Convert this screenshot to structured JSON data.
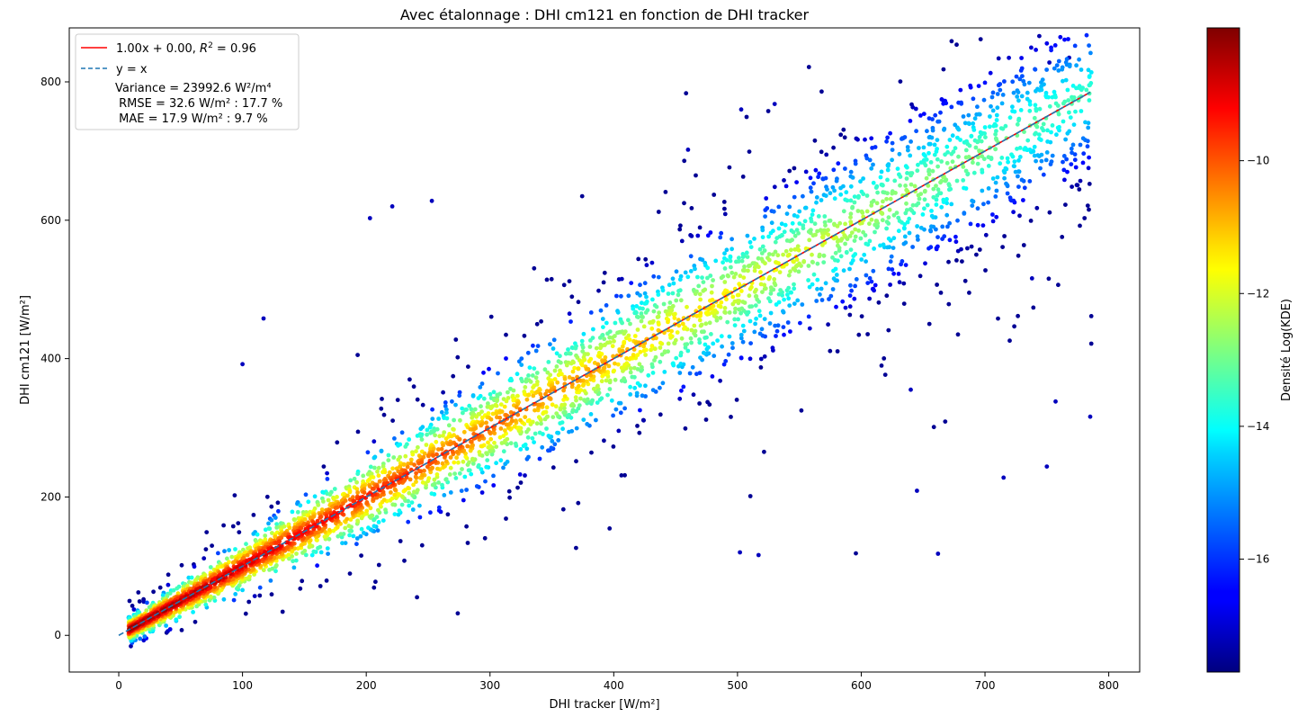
{
  "chart_data": {
    "type": "scatter",
    "title": "Avec étalonnage : DHI cm121 en fonction de DHI tracker",
    "xlabel": "DHI tracker [W/m²]",
    "ylabel": "DHI cm121 [W/m²]",
    "xlim": [
      -40,
      825
    ],
    "ylim": [
      -53,
      878
    ],
    "xticks": [
      0,
      100,
      200,
      300,
      400,
      500,
      600,
      700,
      800
    ],
    "yticks": [
      0,
      200,
      400,
      600,
      800
    ],
    "grid": false,
    "legend_position": "top-left",
    "legend": {
      "fit_label_text": "1.00x + 0.00, ",
      "fit_label_r2": "0.96",
      "identity_label": "y = x",
      "stats_lines": [
        "Variance = 23992.6 W²/m⁴",
        " RMSE = 32.6 W/m² : 17.7 %",
        " MAE = 17.9 W/m² : 9.7 %"
      ]
    },
    "series": [
      {
        "kind": "fit_line",
        "slope": 1.0,
        "intercept": 0.0,
        "r2": 0.96,
        "x_range": [
          10,
          785
        ],
        "color": "#ff0000"
      },
      {
        "kind": "identity_line",
        "x_range": [
          0,
          785
        ],
        "color": "#1f77b4",
        "dash": "dashed"
      }
    ],
    "scatter": {
      "x_range": [
        8,
        786
      ],
      "y_range": [
        -10,
        835
      ],
      "colormap": "jet",
      "color_variable": "Densité Log(KDE)",
      "note_points": "dense cloud of points around y = x, colored by log kernel density",
      "sample_outliers": [
        {
          "x": 752,
          "y": 828
        },
        {
          "x": 768,
          "y": 835
        },
        {
          "x": 785,
          "y": 316
        },
        {
          "x": 757,
          "y": 338
        },
        {
          "x": 750,
          "y": 244
        },
        {
          "x": 715,
          "y": 228
        },
        {
          "x": 662,
          "y": 118
        },
        {
          "x": 517,
          "y": 116
        },
        {
          "x": 502,
          "y": 120
        },
        {
          "x": 530,
          "y": 768
        },
        {
          "x": 503,
          "y": 760
        },
        {
          "x": 460,
          "y": 702
        },
        {
          "x": 253,
          "y": 628
        },
        {
          "x": 221,
          "y": 620
        },
        {
          "x": 203,
          "y": 603
        },
        {
          "x": 117,
          "y": 458
        },
        {
          "x": 100,
          "y": 392
        },
        {
          "x": 645,
          "y": 209
        },
        {
          "x": 640,
          "y": 355
        },
        {
          "x": 738,
          "y": 516
        }
      ]
    },
    "colorbar": {
      "label": "Densité Log(KDE)",
      "range": [
        -17.7,
        -8.0
      ],
      "ticks": [
        -16,
        -14,
        -12,
        -10
      ],
      "tick_labels": [
        "−16",
        "−14",
        "−12",
        "−10"
      ],
      "colormap": "jet"
    }
  },
  "tick_minus": "−"
}
